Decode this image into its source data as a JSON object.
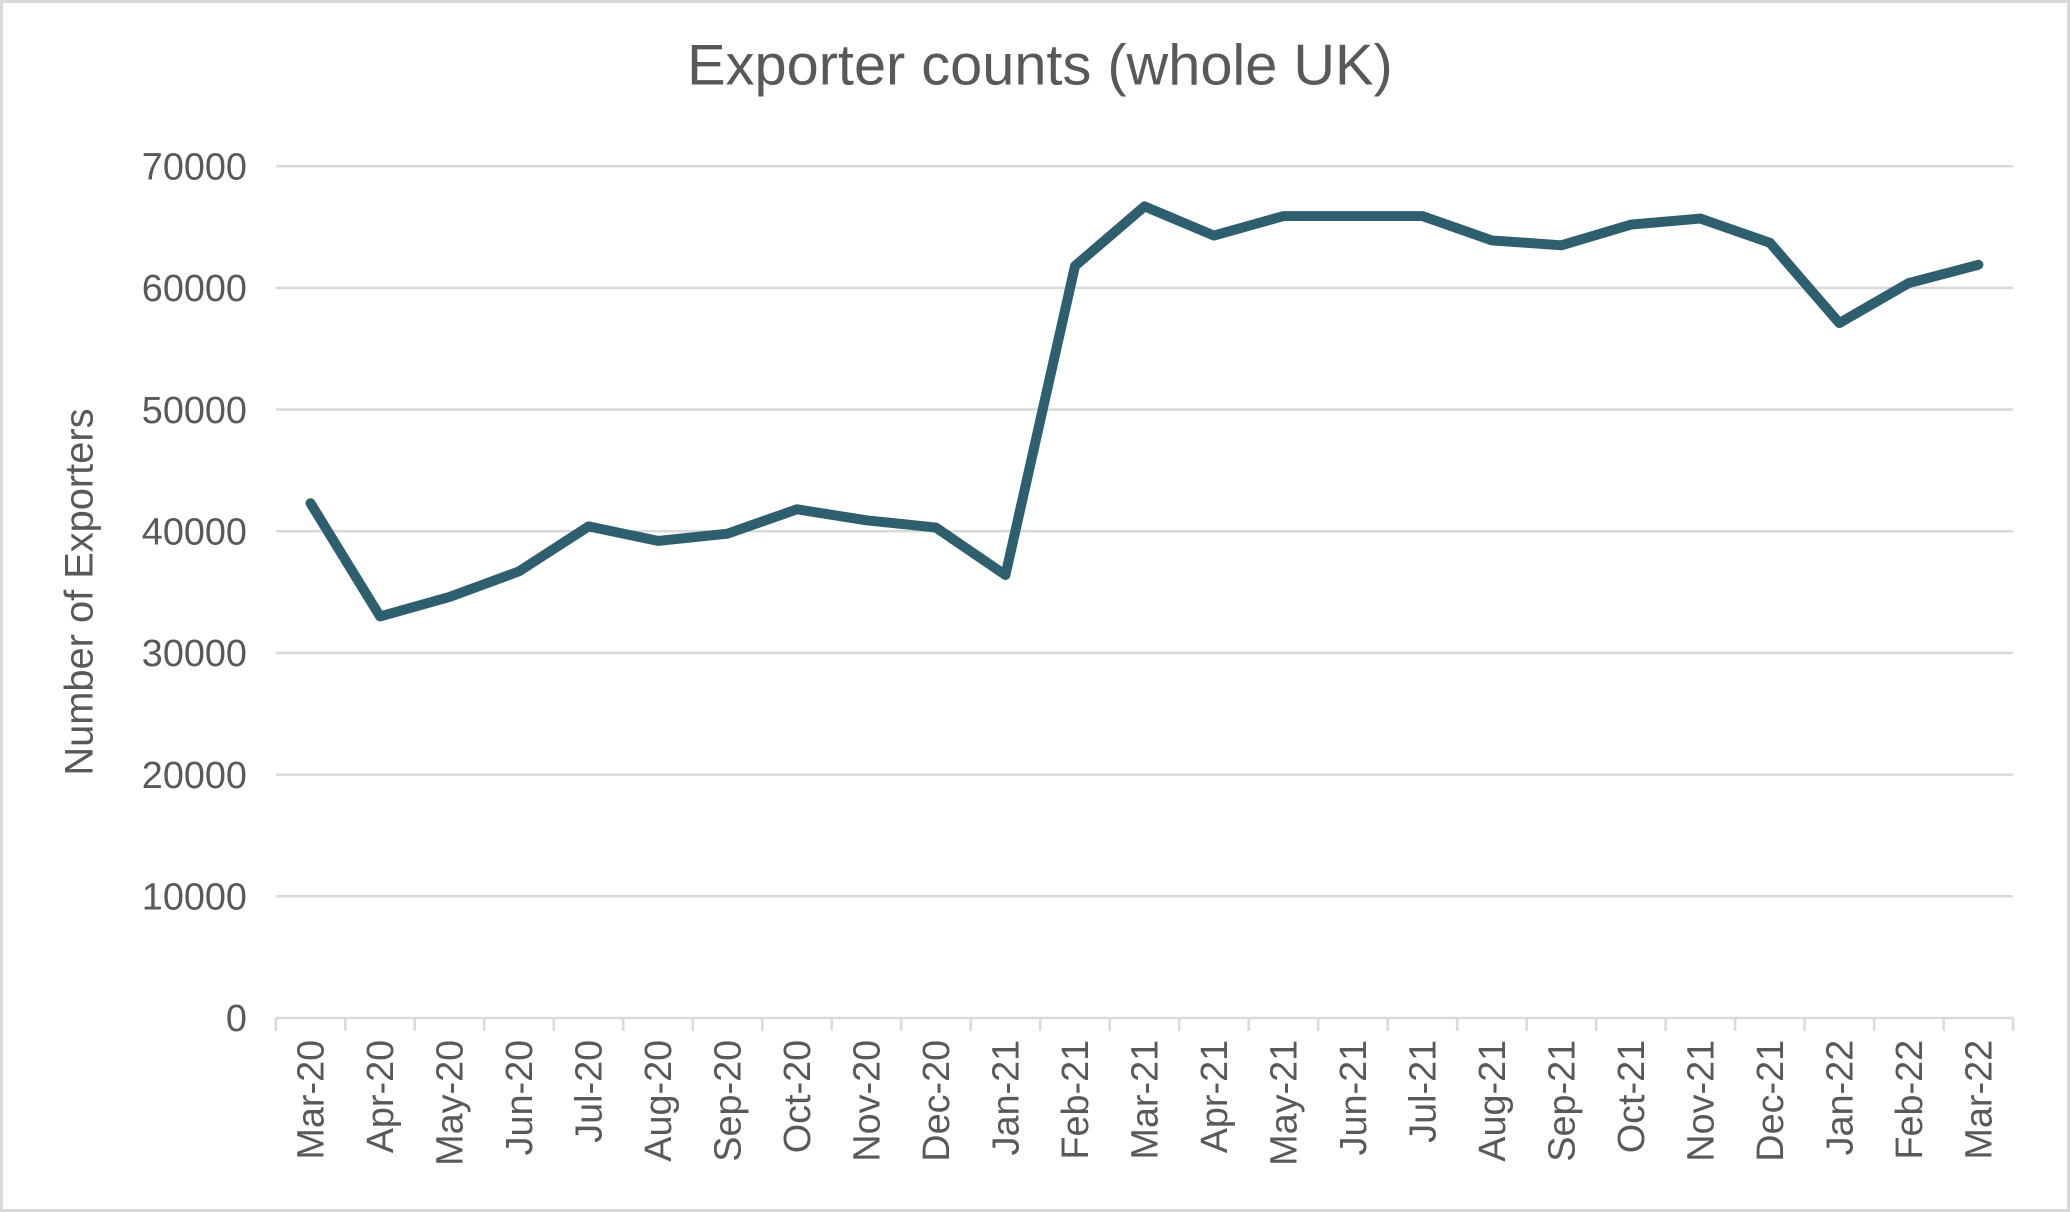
{
  "title": "Exporter counts (whole UK)",
  "colors": {
    "line": "#2e5f6e",
    "gridline": "#d9d9d9",
    "axis": "#d9d9d9",
    "text": "#595959",
    "frame_border": "#d9d9d9",
    "background": "#ffffff"
  },
  "chart_data": {
    "type": "line",
    "title": "Exporter counts (whole UK)",
    "xlabel": "",
    "ylabel": "Number of Exporters",
    "ylim": [
      0,
      70000
    ],
    "ytick_interval": 10000,
    "ytick_labels": [
      "0",
      "10000",
      "20000",
      "30000",
      "40000",
      "50000",
      "60000",
      "70000"
    ],
    "grid": "horizontal",
    "legend_position": "none",
    "categories": [
      "Mar-20",
      "Apr-20",
      "May-20",
      "Jun-20",
      "Jul-20",
      "Aug-20",
      "Sep-20",
      "Oct-20",
      "Nov-20",
      "Dec-20",
      "Jan-21",
      "Feb-21",
      "Mar-21",
      "Apr-21",
      "May-21",
      "Jun-21",
      "Jul-21",
      "Aug-21",
      "Sep-21",
      "Oct-21",
      "Nov-21",
      "Dec-21",
      "Jan-22",
      "Feb-22",
      "Mar-22"
    ],
    "series": [
      {
        "name": "Number of Exporters",
        "values": [
          42300,
          33000,
          34600,
          36700,
          40400,
          39200,
          39800,
          41800,
          40900,
          40300,
          36400,
          61800,
          66700,
          64300,
          65900,
          65900,
          65900,
          63900,
          63500,
          65200,
          65700,
          63700,
          57100,
          60400,
          61900
        ]
      }
    ]
  }
}
